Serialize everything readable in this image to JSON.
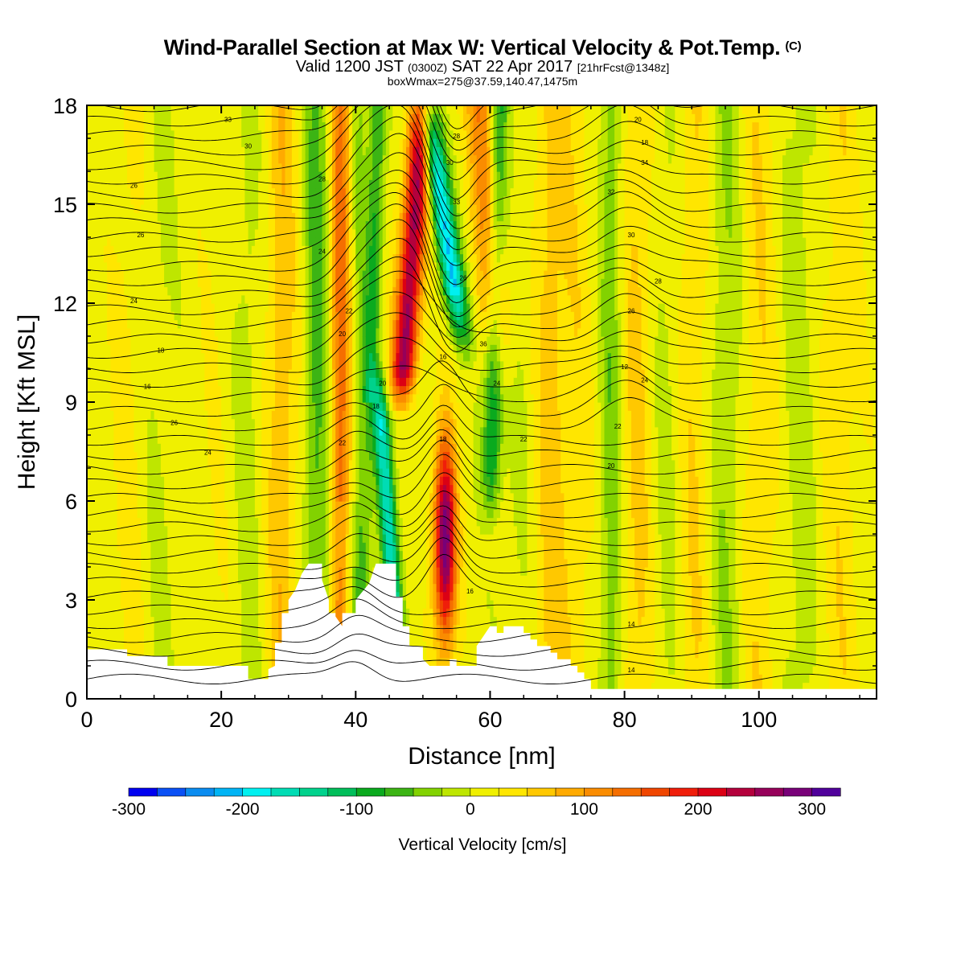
{
  "header": {
    "title_main": "Wind-Parallel Section at Max W: Vertical Velocity & Pot.Temp.",
    "title_copyright": "(C)",
    "valid_prefix": "Valid 1200 JST",
    "valid_utc": "(0300Z)",
    "valid_date": "SAT 22 Apr 2017",
    "forecast_info": "[21hrFcst@1348z]",
    "box_info": "boxWmax=275@37.59,140.47,1475m"
  },
  "chart_data": {
    "type": "heatmap",
    "xlabel": "Distance [nm]",
    "ylabel": "Height [Kft MSL]",
    "xlim": [
      0,
      117.5
    ],
    "ylim": [
      0,
      18
    ],
    "x_ticks": [
      "0",
      "20",
      "40",
      "60",
      "80",
      "100"
    ],
    "x_tick_values": [
      0,
      20,
      40,
      60,
      80,
      100
    ],
    "y_ticks": [
      "0",
      "3",
      "6",
      "9",
      "12",
      "15",
      "18"
    ],
    "y_tick_values": [
      0,
      3,
      6,
      9,
      12,
      15,
      18
    ],
    "colorbar": {
      "title": "Vertical Velocity [cm/s]",
      "range": [
        -300,
        325
      ],
      "labels": [
        "-300",
        "-200",
        "-100",
        "0",
        "100",
        "200",
        "300"
      ],
      "label_values": [
        -300,
        -200,
        -100,
        0,
        100,
        200,
        300
      ],
      "colors": [
        "#0000f0",
        "#0a50f5",
        "#0a8cf0",
        "#00b4f5",
        "#00f0f0",
        "#00dcb4",
        "#00d28c",
        "#00be5a",
        "#0aaa1e",
        "#3cb414",
        "#82d200",
        "#bee600",
        "#f0f000",
        "#ffe600",
        "#ffc800",
        "#ffaa00",
        "#fa8c00",
        "#f56e00",
        "#f04600",
        "#f01e0a",
        "#dc0014",
        "#b4003c",
        "#96005a",
        "#780078",
        "#50009b"
      ]
    },
    "features": [
      {
        "name": "updraft-upper",
        "x": 47,
        "y_range": [
          10,
          18
        ],
        "w_max": 240
      },
      {
        "name": "downdraft-upper",
        "x": 53,
        "y_range": [
          13,
          18
        ],
        "w_min": -200
      },
      {
        "name": "downdraft-lower",
        "x": 45,
        "y_range": [
          1.5,
          9
        ],
        "w_min": -170
      },
      {
        "name": "updraft-lower",
        "x": 53,
        "y_range": [
          1,
          8
        ],
        "w_max": 275
      }
    ],
    "theta_contour_labels": [
      "33",
      "30",
      "28",
      "26",
      "26",
      "24",
      "24",
      "22",
      "20",
      "18",
      "16",
      "26",
      "24",
      "22",
      "20",
      "18",
      "16",
      "36",
      "33",
      "30",
      "28",
      "26",
      "24",
      "22",
      "20",
      "18",
      "34",
      "32",
      "30",
      "28",
      "26",
      "24",
      "22",
      "20",
      "18",
      "16",
      "14",
      "14",
      "12"
    ]
  }
}
